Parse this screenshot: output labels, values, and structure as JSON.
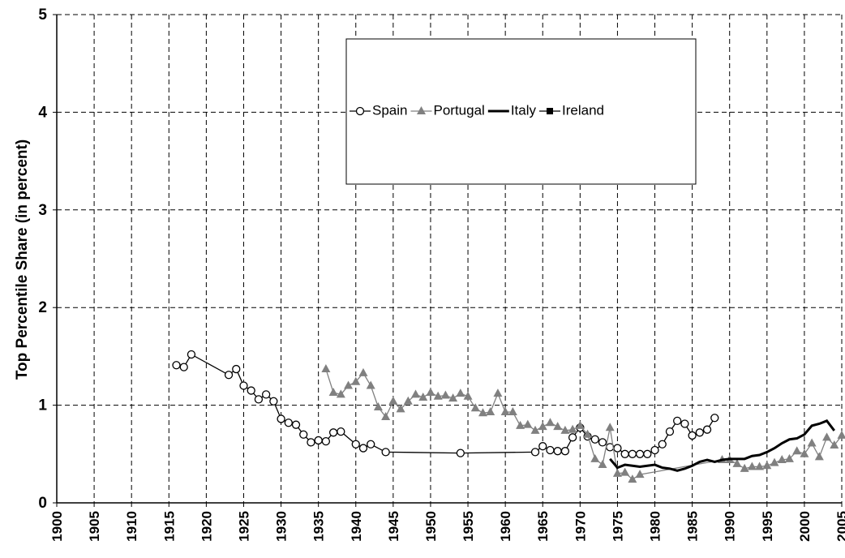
{
  "chart_data": {
    "type": "line",
    "y_label": "Top Percentile Share (in percent)",
    "xlim": [
      1900,
      2005
    ],
    "xticks": [
      1900,
      1905,
      1910,
      1915,
      1920,
      1925,
      1930,
      1935,
      1940,
      1945,
      1950,
      1955,
      1960,
      1965,
      1970,
      1975,
      1980,
      1985,
      1990,
      1995,
      2000,
      2005
    ],
    "ylim": [
      0,
      5
    ],
    "yticks": [
      0,
      1,
      2,
      3,
      4,
      5
    ],
    "grid": true,
    "series": [
      {
        "name": "Spain",
        "color": "#000000",
        "marker": "circle",
        "x": [
          1916,
          1917,
          1918,
          1923,
          1924,
          1925,
          1926,
          1927,
          1928,
          1929,
          1930,
          1931,
          1932,
          1933,
          1934,
          1935,
          1936,
          1937,
          1938,
          1940,
          1941,
          1942,
          1944,
          1954,
          1964,
          1965,
          1966,
          1967,
          1968,
          1969,
          1970,
          1971,
          1972,
          1973,
          1974,
          1975,
          1976,
          1977,
          1978,
          1979,
          1980,
          1981,
          1982,
          1983,
          1984,
          1985,
          1986,
          1987,
          1988
        ],
        "values": [
          1.41,
          1.39,
          1.52,
          1.31,
          1.37,
          1.2,
          1.15,
          1.06,
          1.11,
          1.04,
          0.86,
          0.82,
          0.8,
          0.7,
          0.62,
          0.64,
          0.63,
          0.72,
          0.73,
          0.6,
          0.56,
          0.6,
          0.52,
          0.51,
          0.52,
          0.58,
          0.54,
          0.53,
          0.53,
          0.67,
          0.77,
          0.68,
          0.65,
          0.62,
          0.57,
          0.56,
          0.5,
          0.5,
          0.5,
          0.5,
          0.54,
          0.6,
          0.73,
          0.84,
          0.81,
          0.69,
          0.72,
          0.75,
          0.87
        ]
      },
      {
        "name": "Portugal",
        "color": "#808080",
        "marker": "triangle",
        "x": [
          1936,
          1937,
          1938,
          1939,
          1940,
          1941,
          1942,
          1943,
          1944,
          1945,
          1946,
          1947,
          1948,
          1949,
          1950,
          1951,
          1952,
          1953,
          1954,
          1955,
          1956,
          1957,
          1958,
          1959,
          1960,
          1961,
          1962,
          1963,
          1964,
          1965,
          1966,
          1967,
          1968,
          1969,
          1970,
          1971,
          1972,
          1973,
          1974,
          1975,
          1976,
          1977,
          1978,
          1989,
          1990,
          1991,
          1992,
          1993,
          1994,
          1995,
          1996,
          1997,
          1998,
          1999,
          2000,
          2001,
          2002,
          2003,
          2004,
          2005
        ],
        "values": [
          1.37,
          1.13,
          1.11,
          1.2,
          1.24,
          1.33,
          1.2,
          0.98,
          0.88,
          1.04,
          0.96,
          1.04,
          1.11,
          1.08,
          1.13,
          1.09,
          1.1,
          1.07,
          1.12,
          1.09,
          0.97,
          0.92,
          0.93,
          1.12,
          0.93,
          0.93,
          0.79,
          0.8,
          0.74,
          0.78,
          0.82,
          0.78,
          0.74,
          0.75,
          0.79,
          0.7,
          0.45,
          0.39,
          0.77,
          0.3,
          0.31,
          0.24,
          0.29,
          0.44,
          0.44,
          0.4,
          0.35,
          0.37,
          0.37,
          0.38,
          0.41,
          0.44,
          0.45,
          0.53,
          0.5,
          0.61,
          0.47,
          0.67,
          0.59,
          0.69
        ]
      },
      {
        "name": "Italy",
        "color": "#000000",
        "marker": "none",
        "x": [
          1974,
          1975,
          1976,
          1977,
          1978,
          1979,
          1980,
          1981,
          1982,
          1983,
          1984,
          1985,
          1986,
          1987,
          1988,
          1989,
          1990,
          1991,
          1992,
          1993,
          1994,
          1995,
          1996,
          1997,
          1998,
          1999,
          2000,
          2001,
          2002,
          2003,
          2004
        ],
        "values": [
          0.45,
          0.36,
          0.39,
          0.38,
          0.37,
          0.38,
          0.39,
          0.36,
          0.35,
          0.33,
          0.35,
          0.38,
          0.42,
          0.44,
          0.42,
          0.44,
          0.45,
          0.45,
          0.45,
          0.48,
          0.49,
          0.52,
          0.56,
          0.61,
          0.65,
          0.66,
          0.7,
          0.79,
          0.81,
          0.84,
          0.74
        ]
      },
      {
        "name": "Ireland",
        "color": "#000000",
        "marker": "square",
        "x": [],
        "values": []
      }
    ]
  }
}
